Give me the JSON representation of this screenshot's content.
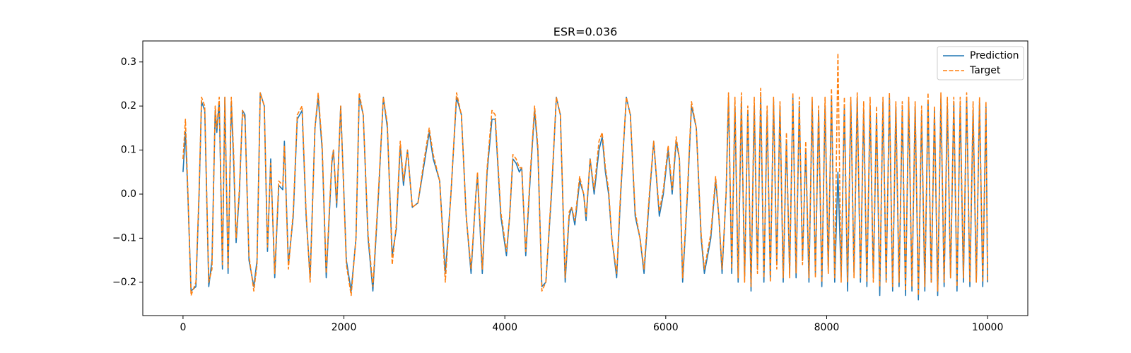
{
  "chart_data": {
    "type": "line",
    "title": "ESR=0.036",
    "x": [
      0,
      30,
      60,
      100,
      160,
      200,
      230,
      270,
      320,
      360,
      400,
      420,
      450,
      490,
      520,
      560,
      600,
      630,
      660,
      700,
      740,
      770,
      820,
      880,
      920,
      960,
      1010,
      1050,
      1090,
      1140,
      1190,
      1240,
      1260,
      1310,
      1370,
      1420,
      1480,
      1530,
      1580,
      1640,
      1680,
      1730,
      1780,
      1850,
      1870,
      1910,
      1960,
      2030,
      2090,
      2150,
      2190,
      2240,
      2300,
      2360,
      2430,
      2490,
      2540,
      2600,
      2650,
      2700,
      2740,
      2790,
      2850,
      2920,
      2990,
      3060,
      3110,
      3190,
      3260,
      3330,
      3400,
      3460,
      3520,
      3580,
      3640,
      3660,
      3720,
      3780,
      3840,
      3880,
      3950,
      4020,
      4060,
      4100,
      4140,
      4180,
      4210,
      4260,
      4320,
      4370,
      4410,
      4460,
      4510,
      4580,
      4640,
      4690,
      4750,
      4800,
      4830,
      4870,
      4930,
      4980,
      5010,
      5060,
      5110,
      5170,
      5210,
      5250,
      5290,
      5330,
      5390,
      5440,
      5510,
      5560,
      5620,
      5680,
      5730,
      5800,
      5850,
      5920,
      5970,
      6030,
      6080,
      6130,
      6170,
      6210,
      6270,
      6320,
      6380,
      6440,
      6480,
      6560,
      6620,
      6660,
      6700,
      6750,
      6780,
      6820,
      6860,
      6900,
      6940,
      6980,
      7020,
      7060,
      7100,
      7140,
      7180,
      7220,
      7260,
      7300,
      7340,
      7380,
      7420,
      7460,
      7500,
      7540,
      7580,
      7620,
      7660,
      7700,
      7740,
      7780,
      7820,
      7860,
      7900,
      7940,
      7980,
      8020,
      8060,
      8100,
      8140,
      8180,
      8220,
      8260,
      8300,
      8340,
      8380,
      8420,
      8460,
      8500,
      8540,
      8580,
      8620,
      8660,
      8700,
      8740,
      8780,
      8820,
      8860,
      8900,
      8940,
      8980,
      9020,
      9060,
      9100,
      9140,
      9180,
      9220,
      9260,
      9300,
      9340,
      9380,
      9420,
      9460,
      9500,
      9540,
      9580,
      9620,
      9660,
      9700,
      9740,
      9780,
      9820,
      9860,
      9900,
      9940,
      9980,
      10000
    ],
    "series": [
      {
        "name": "Prediction",
        "color": "#1f77b4",
        "dash": false,
        "values": [
          0.05,
          0.14,
          0.0,
          -0.22,
          -0.21,
          0.0,
          0.21,
          0.19,
          -0.21,
          -0.15,
          0.19,
          0.14,
          0.21,
          -0.17,
          0.22,
          -0.18,
          0.21,
          0.07,
          -0.11,
          0.0,
          0.19,
          0.18,
          -0.15,
          -0.21,
          -0.15,
          0.23,
          0.2,
          -0.13,
          0.08,
          -0.19,
          0.02,
          0.01,
          0.12,
          -0.16,
          -0.05,
          0.17,
          0.19,
          -0.05,
          -0.19,
          0.15,
          0.22,
          0.1,
          -0.19,
          0.07,
          0.1,
          -0.03,
          0.2,
          -0.15,
          -0.22,
          -0.1,
          0.22,
          0.18,
          -0.1,
          -0.22,
          0.0,
          0.22,
          0.15,
          -0.14,
          -0.08,
          0.11,
          0.02,
          0.1,
          -0.03,
          -0.02,
          0.06,
          0.14,
          0.08,
          0.03,
          -0.18,
          0.0,
          0.22,
          0.18,
          -0.05,
          -0.18,
          0.0,
          0.04,
          -0.18,
          0.05,
          0.17,
          0.17,
          -0.05,
          -0.14,
          -0.05,
          0.08,
          0.07,
          0.05,
          0.06,
          -0.14,
          0.05,
          0.19,
          0.1,
          -0.21,
          -0.2,
          0.0,
          0.22,
          0.18,
          -0.2,
          -0.05,
          -0.03,
          -0.07,
          0.03,
          0.0,
          -0.06,
          0.08,
          0.0,
          0.1,
          0.13,
          0.05,
          0.0,
          -0.1,
          -0.19,
          0.0,
          0.22,
          0.18,
          -0.05,
          -0.1,
          -0.18,
          0.0,
          0.12,
          -0.05,
          0.0,
          0.1,
          0.0,
          0.12,
          0.08,
          -0.2,
          0.0,
          0.2,
          0.15,
          -0.1,
          -0.18,
          -0.1,
          0.03,
          -0.05,
          -0.18,
          0.0,
          0.22,
          -0.18,
          0.2,
          -0.2,
          0.21,
          -0.19,
          0.19,
          -0.22,
          0.2,
          -0.17,
          0.22,
          -0.2,
          0.18,
          -0.19,
          0.21,
          -0.16,
          0.2,
          -0.2,
          0.12,
          -0.18,
          0.22,
          -0.19,
          0.2,
          -0.15,
          0.1,
          -0.2,
          0.21,
          -0.18,
          0.19,
          -0.21,
          0.2,
          -0.17,
          0.22,
          -0.2,
          0.05,
          -0.19,
          0.2,
          -0.22,
          0.21,
          -0.18,
          0.22,
          -0.2,
          0.19,
          -0.21,
          0.2,
          -0.19,
          0.18,
          -0.23,
          0.21,
          -0.2,
          0.22,
          -0.22,
          0.2,
          -0.21,
          0.19,
          -0.23,
          0.21,
          -0.22,
          0.2,
          -0.24,
          0.18,
          -0.22,
          0.21,
          -0.2,
          0.19,
          -0.23,
          0.22,
          -0.21,
          0.2,
          -0.19,
          0.21,
          -0.22,
          0.2,
          -0.2,
          0.22,
          -0.21,
          0.19,
          -0.2,
          0.21,
          -0.21,
          0.2,
          -0.2
        ]
      },
      {
        "name": "Target",
        "color": "#ff7f0e",
        "dash": true,
        "values": [
          0.08,
          0.17,
          0.01,
          -0.23,
          -0.2,
          0.01,
          0.22,
          0.2,
          -0.2,
          -0.17,
          0.2,
          0.15,
          0.22,
          -0.16,
          0.22,
          -0.17,
          0.22,
          0.09,
          -0.1,
          0.01,
          0.19,
          0.17,
          -0.14,
          -0.22,
          -0.16,
          0.23,
          0.2,
          -0.12,
          0.07,
          -0.18,
          0.03,
          0.02,
          0.11,
          -0.17,
          -0.04,
          0.18,
          0.2,
          -0.04,
          -0.2,
          0.15,
          0.23,
          0.11,
          -0.18,
          0.08,
          0.1,
          -0.02,
          0.2,
          -0.16,
          -0.23,
          -0.1,
          0.23,
          0.18,
          -0.09,
          -0.21,
          0.01,
          0.22,
          0.16,
          -0.16,
          -0.07,
          0.12,
          0.03,
          0.1,
          -0.03,
          -0.02,
          0.07,
          0.15,
          0.09,
          0.03,
          -0.2,
          0.0,
          0.23,
          0.18,
          -0.05,
          -0.17,
          0.0,
          0.05,
          -0.17,
          0.06,
          0.19,
          0.18,
          -0.04,
          -0.13,
          -0.05,
          0.09,
          0.08,
          0.06,
          0.06,
          -0.13,
          0.06,
          0.2,
          0.11,
          -0.22,
          -0.2,
          0.01,
          0.22,
          0.18,
          -0.19,
          -0.04,
          -0.03,
          -0.06,
          0.04,
          0.0,
          -0.05,
          0.08,
          0.01,
          0.12,
          0.14,
          0.06,
          0.01,
          -0.1,
          -0.18,
          0.01,
          0.22,
          0.18,
          -0.04,
          -0.1,
          -0.17,
          0.01,
          0.12,
          -0.04,
          0.01,
          0.11,
          0.01,
          0.13,
          0.08,
          -0.19,
          0.01,
          0.21,
          0.15,
          -0.09,
          -0.17,
          -0.09,
          0.04,
          -0.05,
          -0.17,
          0.0,
          0.23,
          -0.17,
          0.22,
          -0.19,
          0.23,
          -0.2,
          0.2,
          -0.21,
          0.22,
          -0.18,
          0.24,
          -0.19,
          0.2,
          -0.2,
          0.22,
          -0.17,
          0.21,
          -0.19,
          0.14,
          -0.19,
          0.23,
          -0.18,
          0.22,
          -0.16,
          0.12,
          -0.19,
          0.22,
          -0.19,
          0.2,
          -0.2,
          0.22,
          -0.18,
          0.24,
          -0.19,
          0.32,
          -0.2,
          0.22,
          -0.2,
          0.22,
          -0.19,
          0.23,
          -0.19,
          0.21,
          -0.2,
          0.22,
          -0.2,
          0.2,
          -0.21,
          0.22,
          -0.2,
          0.23,
          -0.21,
          0.21,
          -0.2,
          0.21,
          -0.22,
          0.22,
          -0.21,
          0.21,
          -0.23,
          0.2,
          -0.21,
          0.23,
          -0.2,
          0.2,
          -0.22,
          0.23,
          -0.2,
          0.22,
          -0.19,
          0.22,
          -0.21,
          0.22,
          -0.19,
          0.23,
          -0.2,
          0.21,
          -0.2,
          0.22,
          -0.2,
          0.21,
          -0.2
        ]
      }
    ],
    "xlim": [
      -500,
      10500
    ],
    "xticks": [
      0,
      2000,
      4000,
      6000,
      8000,
      10000
    ],
    "ylim": [
      -0.2757,
      0.3477
    ],
    "yticks": [
      {
        "value": -0.2,
        "label": "−0.2"
      },
      {
        "value": -0.1,
        "label": "−0.1"
      },
      {
        "value": 0,
        "label": "0.0"
      },
      0.1,
      0.2,
      0.3
    ],
    "grid": false,
    "legend": "upper right"
  }
}
